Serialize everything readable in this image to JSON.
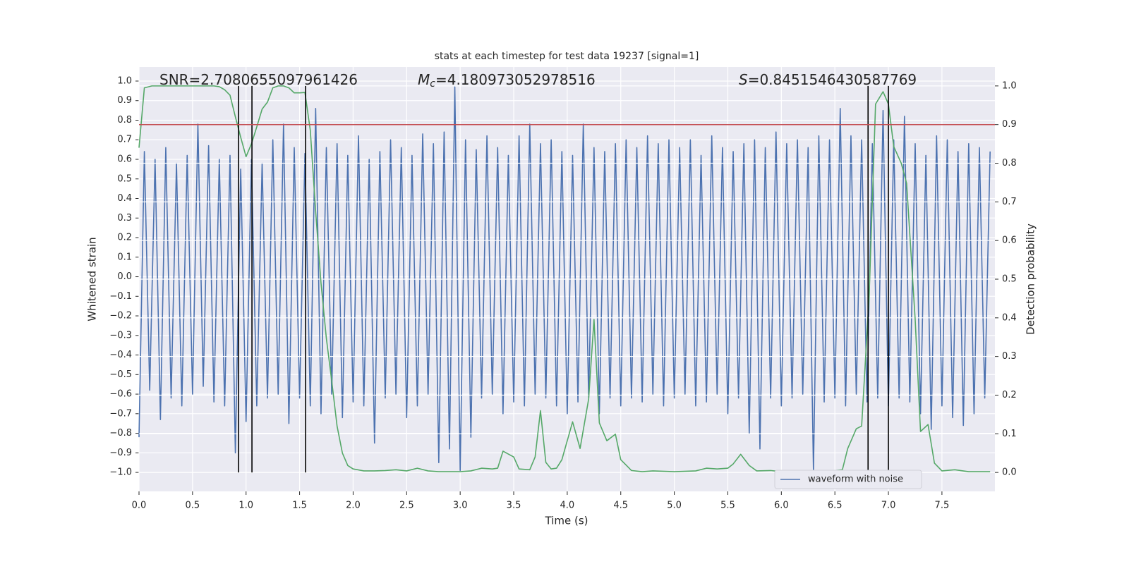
{
  "chart_data": {
    "type": "line",
    "title": "stats at each timestep for test data 19237 [signal=1]",
    "xlabel": "Time (s)",
    "ylabel": "Whitened strain",
    "y2label": "Detection probability",
    "annotations": [
      {
        "text": "SNR=2.7080655097961426"
      },
      {
        "symbol": "M",
        "subscript": "c",
        "text": "=4.180973052978516"
      },
      {
        "symbol": "S",
        "text": "=0.8451546430587769"
      }
    ],
    "xlim": [
      0,
      7.995
    ],
    "ylim": [
      -1.097,
      1.072
    ],
    "y2lim": [
      -0.049,
      1.049
    ],
    "xticks": [
      {
        "value": 0,
        "label": "0.0"
      },
      {
        "value": 0.5,
        "label": "0.5"
      },
      {
        "value": 1,
        "label": "1.0"
      },
      {
        "value": 1.5,
        "label": "1.5"
      },
      {
        "value": 2,
        "label": "2.0"
      },
      {
        "value": 2.5,
        "label": "2.5"
      },
      {
        "value": 3,
        "label": "3.0"
      },
      {
        "value": 3.5,
        "label": "3.5"
      },
      {
        "value": 4,
        "label": "4.0"
      },
      {
        "value": 4.5,
        "label": "4.5"
      },
      {
        "value": 5,
        "label": "5.0"
      },
      {
        "value": 5.5,
        "label": "5.5"
      },
      {
        "value": 6,
        "label": "6.0"
      },
      {
        "value": 6.5,
        "label": "6.5"
      },
      {
        "value": 7,
        "label": "7.0"
      },
      {
        "value": 7.5,
        "label": "7.5"
      }
    ],
    "yticks": [
      {
        "value": -1,
        "label": "−1.0"
      },
      {
        "value": -0.9,
        "label": "−0.9"
      },
      {
        "value": -0.8,
        "label": "−0.8"
      },
      {
        "value": -0.7,
        "label": "−0.7"
      },
      {
        "value": -0.6,
        "label": "−0.6"
      },
      {
        "value": -0.5,
        "label": "−0.5"
      },
      {
        "value": -0.4,
        "label": "−0.4"
      },
      {
        "value": -0.3,
        "label": "−0.3"
      },
      {
        "value": -0.2,
        "label": "−0.2"
      },
      {
        "value": -0.1,
        "label": "−0.1"
      },
      {
        "value": 0,
        "label": "0.0"
      },
      {
        "value": 0.1,
        "label": "0.1"
      },
      {
        "value": 0.2,
        "label": "0.2"
      },
      {
        "value": 0.3,
        "label": "0.3"
      },
      {
        "value": 0.4,
        "label": "0.4"
      },
      {
        "value": 0.5,
        "label": "0.5"
      },
      {
        "value": 0.6,
        "label": "0.6"
      },
      {
        "value": 0.7,
        "label": "0.7"
      },
      {
        "value": 0.8,
        "label": "0.8"
      },
      {
        "value": 0.9,
        "label": "0.9"
      },
      {
        "value": 1,
        "label": "1.0"
      }
    ],
    "y2ticks": [
      {
        "value": 0,
        "label": "0.0"
      },
      {
        "value": 0.1,
        "label": "0.1"
      },
      {
        "value": 0.2,
        "label": "0.2"
      },
      {
        "value": 0.3,
        "label": "0.3"
      },
      {
        "value": 0.4,
        "label": "0.4"
      },
      {
        "value": 0.5,
        "label": "0.5"
      },
      {
        "value": 0.6,
        "label": "0.6"
      },
      {
        "value": 0.7,
        "label": "0.7"
      },
      {
        "value": 0.8,
        "label": "0.8"
      },
      {
        "value": 0.9,
        "label": "0.9"
      },
      {
        "value": 1,
        "label": "1.0"
      }
    ],
    "grid": true,
    "legend": "lower right",
    "x": [
      0,
      0.05,
      0.1,
      0.15,
      0.2,
      0.25,
      0.3,
      0.35,
      0.4,
      0.45,
      0.5,
      0.55,
      0.6,
      0.65,
      0.7,
      0.75,
      0.8,
      0.85,
      0.9,
      0.95,
      1,
      1.05,
      1.1,
      1.15,
      1.2,
      1.25,
      1.3,
      1.35,
      1.4,
      1.45,
      1.5,
      1.55,
      1.6,
      1.65,
      1.7,
      1.75,
      1.8,
      1.85,
      1.9,
      1.95,
      2,
      2.05,
      2.1,
      2.15,
      2.2,
      2.25,
      2.3,
      2.35,
      2.4,
      2.45,
      2.5,
      2.55,
      2.6,
      2.65,
      2.7,
      2.75,
      2.8,
      2.85,
      2.9,
      2.95,
      3,
      3.05,
      3.1,
      3.15,
      3.2,
      3.25,
      3.3,
      3.35,
      3.4,
      3.45,
      3.5,
      3.55,
      3.6,
      3.65,
      3.7,
      3.75,
      3.8,
      3.85,
      3.9,
      3.95,
      4,
      4.05,
      4.1,
      4.15,
      4.2,
      4.25,
      4.3,
      4.35,
      4.4,
      4.45,
      4.5,
      4.55,
      4.6,
      4.65,
      4.7,
      4.75,
      4.8,
      4.85,
      4.9,
      4.95,
      5,
      5.05,
      5.1,
      5.15,
      5.2,
      5.25,
      5.3,
      5.35,
      5.4,
      5.45,
      5.5,
      5.55,
      5.6,
      5.65,
      5.7,
      5.75,
      5.8,
      5.85,
      5.9,
      5.95,
      6,
      6.05,
      6.1,
      6.15,
      6.2,
      6.25,
      6.3,
      6.35,
      6.4,
      6.45,
      6.5,
      6.55,
      6.6,
      6.65,
      6.7,
      6.75,
      6.8,
      6.85,
      6.9,
      6.95,
      7,
      7.05,
      7.1,
      7.15,
      7.2,
      7.25,
      7.3,
      7.35,
      7.4,
      7.45,
      7.5,
      7.55,
      7.6,
      7.65,
      7.7,
      7.75,
      7.8,
      7.85,
      7.9,
      7.95
    ],
    "series": [
      {
        "name": "waveform with noise",
        "color": "#4c72b0",
        "values": [
          -0.82,
          0.64,
          -0.58,
          0.6,
          -0.73,
          0.66,
          -0.62,
          0.58,
          -0.66,
          0.62,
          -0.6,
          0.78,
          -0.56,
          0.67,
          -0.64,
          0.6,
          -0.66,
          0.62,
          -0.9,
          0.55,
          -0.74,
          0.6,
          -0.66,
          0.58,
          -0.62,
          0.7,
          -0.6,
          0.78,
          -0.75,
          0.66,
          -0.62,
          0.63,
          -0.66,
          0.86,
          -0.7,
          0.66,
          -0.6,
          0.68,
          -0.72,
          0.62,
          -0.64,
          0.72,
          -0.66,
          0.6,
          -0.85,
          0.64,
          -0.62,
          0.7,
          -0.6,
          0.66,
          -0.72,
          0.62,
          -0.66,
          0.73,
          -0.6,
          0.68,
          -0.95,
          0.74,
          -0.88,
          0.97,
          -0.99,
          0.7,
          -0.82,
          0.65,
          -0.62,
          0.72,
          -0.6,
          0.66,
          -0.7,
          0.62,
          -0.64,
          0.72,
          -0.66,
          0.78,
          -0.6,
          0.68,
          -0.62,
          0.7,
          -0.66,
          0.64,
          -0.7,
          0.62,
          -0.64,
          0.78,
          -0.62,
          0.66,
          -0.7,
          0.64,
          -0.62,
          0.68,
          -0.66,
          0.7,
          -0.62,
          0.66,
          -0.64,
          0.72,
          -0.6,
          0.68,
          -0.66,
          0.7,
          -0.62,
          0.66,
          -0.6,
          0.7,
          -0.66,
          0.62,
          -0.64,
          0.72,
          -0.6,
          0.66,
          -0.7,
          0.64,
          -0.62,
          0.68,
          -0.8,
          0.7,
          -0.88,
          0.66,
          -0.62,
          0.74,
          -0.66,
          0.68,
          -0.62,
          0.7,
          -0.6,
          0.66,
          -0.99,
          0.72,
          -0.64,
          0.7,
          -0.62,
          0.86,
          -0.66,
          0.72,
          -0.6,
          0.7,
          -0.64,
          0.68,
          -0.62,
          0.85,
          -0.66,
          0.7,
          -0.62,
          0.82,
          -0.64,
          0.68,
          -0.7,
          0.62,
          -0.78,
          0.72,
          -0.66,
          0.7,
          -0.72,
          0.64,
          -0.76,
          0.68,
          -0.7,
          0.66,
          -0.62,
          0.64
        ]
      },
      {
        "color": "#55a868",
        "axis": "y2",
        "x": [
          0,
          0.05,
          0.12,
          0.7,
          0.75,
          0.8,
          0.85,
          0.9,
          0.95,
          1,
          1.05,
          1.1,
          1.15,
          1.2,
          1.25,
          1.3,
          1.35,
          1.4,
          1.45,
          1.5,
          1.55,
          1.6,
          1.65,
          1.7,
          1.75,
          1.8,
          1.85,
          1.9,
          1.95,
          2,
          2.1,
          2.2,
          2.3,
          2.4,
          2.5,
          2.6,
          2.7,
          2.8,
          2.9,
          3,
          3.1,
          3.2,
          3.3,
          3.35,
          3.4,
          3.5,
          3.55,
          3.65,
          3.7,
          3.75,
          3.8,
          3.85,
          3.9,
          3.95,
          4.05,
          4.12,
          4.2,
          4.25,
          4.3,
          4.37,
          4.45,
          4.5,
          4.6,
          4.7,
          4.8,
          5,
          5.2,
          5.3,
          5.4,
          5.5,
          5.55,
          5.62,
          5.7,
          5.77,
          5.9,
          6,
          6.2,
          6.4,
          6.57,
          6.62,
          6.7,
          6.75,
          6.82,
          6.88,
          6.95,
          7,
          7.05,
          7.12,
          7.17,
          7.25,
          7.3,
          7.37,
          7.43,
          7.5,
          7.62,
          7.75,
          7.95
        ],
        "values": [
          0.84,
          0.995,
          1,
          1,
          0.998,
          0.99,
          0.976,
          0.92,
          0.867,
          0.817,
          0.85,
          0.894,
          0.94,
          0.958,
          0.995,
          1,
          1,
          0.995,
          0.982,
          0.982,
          0.983,
          0.885,
          0.675,
          0.49,
          0.347,
          0.237,
          0.12,
          0.05,
          0.018,
          0.009,
          0.004,
          0.004,
          0.005,
          0.007,
          0.004,
          0.011,
          0.004,
          0.002,
          0.002,
          0.002,
          0.004,
          0.011,
          0.009,
          0.011,
          0.055,
          0.04,
          0.009,
          0.007,
          0.04,
          0.16,
          0.026,
          0.009,
          0.011,
          0.033,
          0.131,
          0.062,
          0.19,
          0.396,
          0.128,
          0.082,
          0.099,
          0.033,
          0.005,
          0.002,
          0.004,
          0.002,
          0.004,
          0.011,
          0.009,
          0.011,
          0.022,
          0.047,
          0.018,
          0.004,
          0.005,
          0.002,
          0.002,
          0.002,
          0.007,
          0.062,
          0.113,
          0.12,
          0.456,
          0.953,
          0.985,
          0.953,
          0.843,
          0.8,
          0.748,
          0.396,
          0.106,
          0.124,
          0.024,
          0.004,
          0.007,
          0.002,
          0.002
        ]
      }
    ],
    "vlines": [
      0.93,
      1.055,
      1.556,
      6.81,
      7.0
    ],
    "vline_color": "#000000",
    "threshold": {
      "value": 0.9,
      "axis": "y2",
      "color": "#c44e52"
    }
  }
}
